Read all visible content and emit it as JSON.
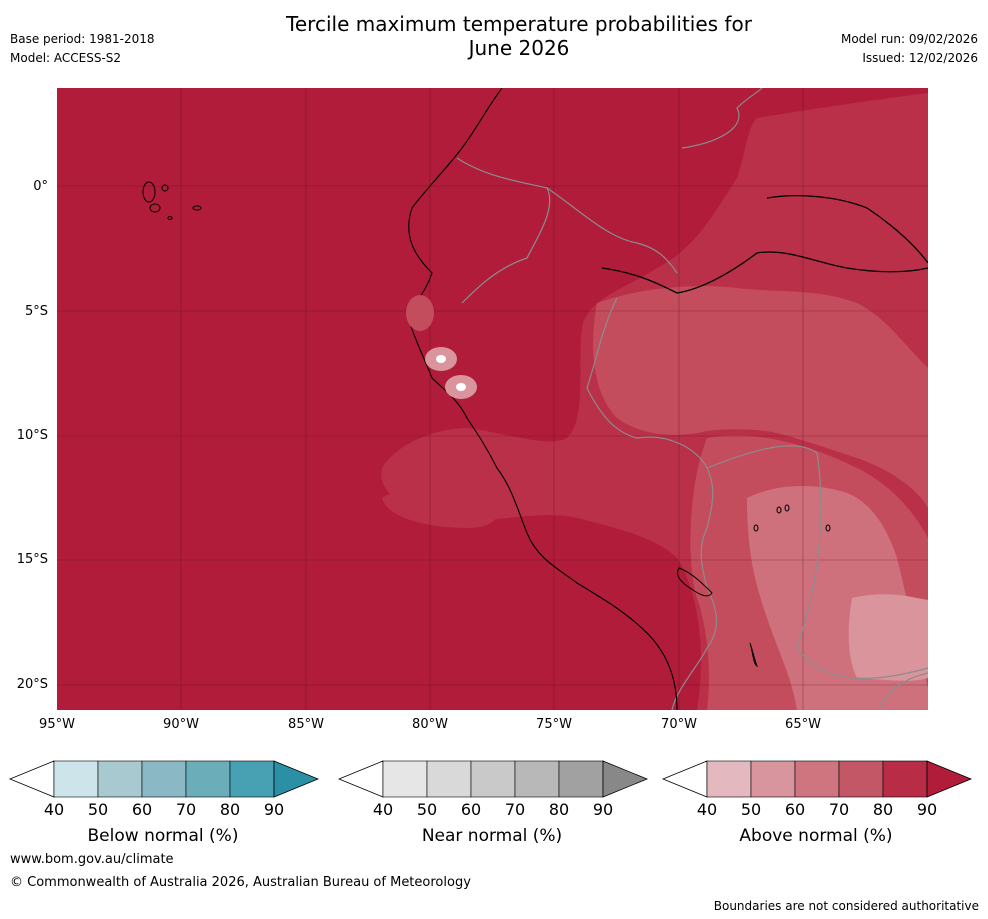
{
  "title_line1": "Tercile maximum temperature probabilities for",
  "title_line2": "June 2026",
  "meta_left": [
    "Base period: 1981-2018",
    "Model: ACCESS-S2"
  ],
  "meta_right": [
    "Model run: 09/02/2026",
    "Issued: 12/02/2026"
  ],
  "lat_ticks": [
    "0°",
    "5°S",
    "10°S",
    "15°S",
    "20°S"
  ],
  "lon_ticks": [
    "95°W",
    "90°W",
    "85°W",
    "80°W",
    "75°W",
    "70°W",
    "65°W"
  ],
  "colorbars": [
    {
      "label": "Below normal (%)",
      "ticks": [
        "40",
        "50",
        "60",
        "70",
        "80",
        "90"
      ],
      "colors": [
        "#cde5ea",
        "#a8c9cf",
        "#8ab8c4",
        "#6baeba",
        "#47a1b3",
        "#2b8fa6"
      ]
    },
    {
      "label": "Near normal (%)",
      "ticks": [
        "40",
        "50",
        "60",
        "70",
        "80",
        "90"
      ],
      "colors": [
        "#e6e6e6",
        "#d9d9d9",
        "#c9c9c9",
        "#b8b8b8",
        "#a1a1a1",
        "#888888"
      ]
    },
    {
      "label": "Above normal (%)",
      "ticks": [
        "40",
        "50",
        "60",
        "70",
        "80",
        "90"
      ],
      "colors": [
        "#e3b9bf",
        "#d9959d",
        "#cf757f",
        "#c45766",
        "#b82d45",
        "#b01c3a"
      ]
    }
  ],
  "footer": {
    "website": "www.bom.gov.au/climate",
    "copyright": "© Commonwealth of Australia 2026, Australian Bureau of Meteorology",
    "disclaimer": "Boundaries are not considered authoritative"
  },
  "map_colors": {
    "above_90": "#b01c3a",
    "above_80": "#ba3049",
    "above_70": "#c44d5d",
    "above_60": "#cf717d",
    "above_50": "#d9949c"
  }
}
